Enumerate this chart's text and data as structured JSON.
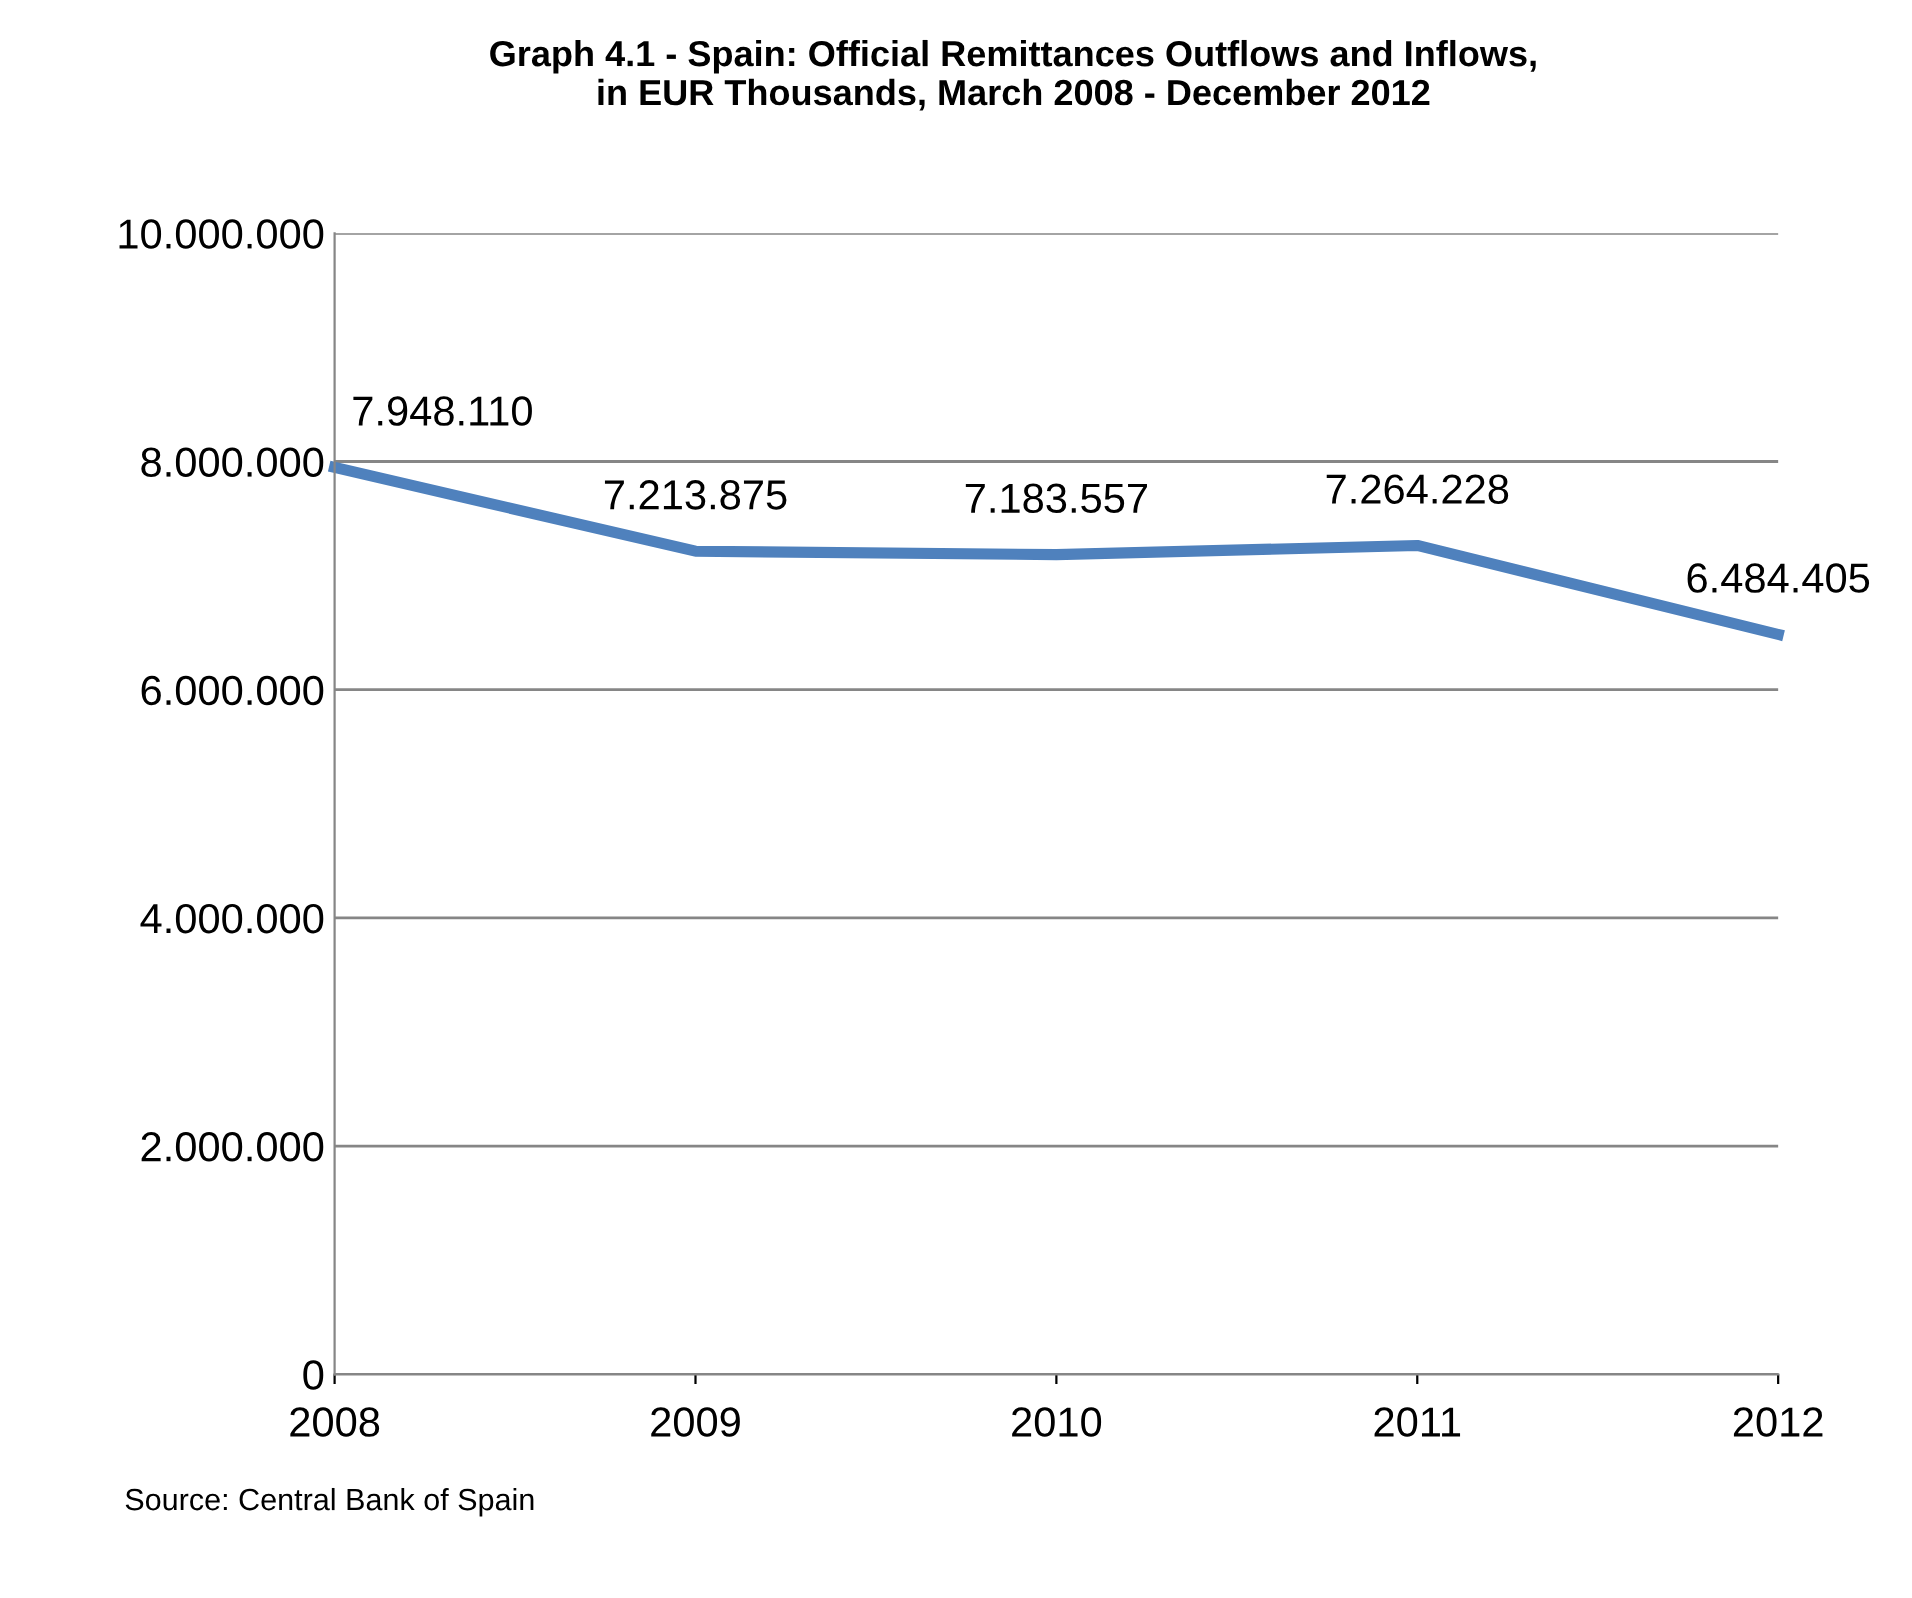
{
  "chart_data": {
    "type": "line",
    "title": "Graph 4.1 - Spain: Official Remittances Outflows and Inflows,\nin EUR Thousands, March 2008 - December 2012",
    "categories": [
      "2008",
      "2009",
      "2010",
      "2011",
      "2012"
    ],
    "series": [
      {
        "color": "#4f81bd",
        "values": [
          7948110,
          7213875,
          7183557,
          7264228,
          6484405
        ],
        "value_labels": [
          "7.948.110",
          "7.213.875",
          "7.183.557",
          "7.264.228",
          "6.484.405"
        ]
      }
    ],
    "ylim": [
      0,
      10000000
    ],
    "yticks": [
      {
        "value": 0,
        "label": "0"
      },
      {
        "value": 2000000,
        "label": "2.000.000"
      },
      {
        "value": 4000000,
        "label": "4.000.000"
      },
      {
        "value": 6000000,
        "label": "6.000.000"
      },
      {
        "value": 8000000,
        "label": "8.000.000"
      },
      {
        "value": 10000000,
        "label": "10.000.000"
      }
    ],
    "grid": "y",
    "marker": "none",
    "line_style": "solid",
    "annotations": [
      "Source: Central Bank of Spain"
    ]
  }
}
